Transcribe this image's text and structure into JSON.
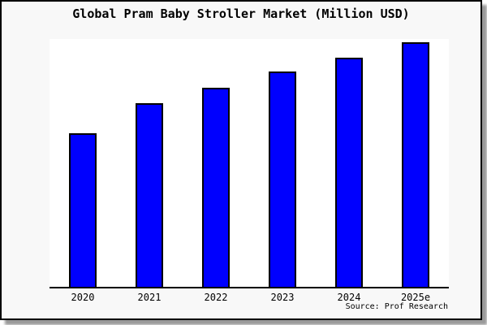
{
  "chart_data": {
    "type": "bar",
    "title": "Global Pram Baby Stroller Market (Million USD)",
    "categories": [
      "2020",
      "2021",
      "2022",
      "2023",
      "2024",
      "2025e"
    ],
    "values": [
      62.8,
      75.1,
      81.4,
      88,
      93.7,
      100
    ],
    "value_scale_note": "no y-axis ticks shown in chart; values are relative bar heights indexed to 2025e = 100",
    "ylim": [
      0,
      101.3
    ],
    "xlabel": "",
    "ylabel": "",
    "grid": false,
    "legend": false,
    "source": "Source: Prof Research",
    "colors": {
      "bar_fill": "#0000FE",
      "bar_border": "#000000",
      "figure_background": "#f8f8f8",
      "plot_background": "#ffffff",
      "border": "#000000",
      "text": "#000000"
    }
  }
}
